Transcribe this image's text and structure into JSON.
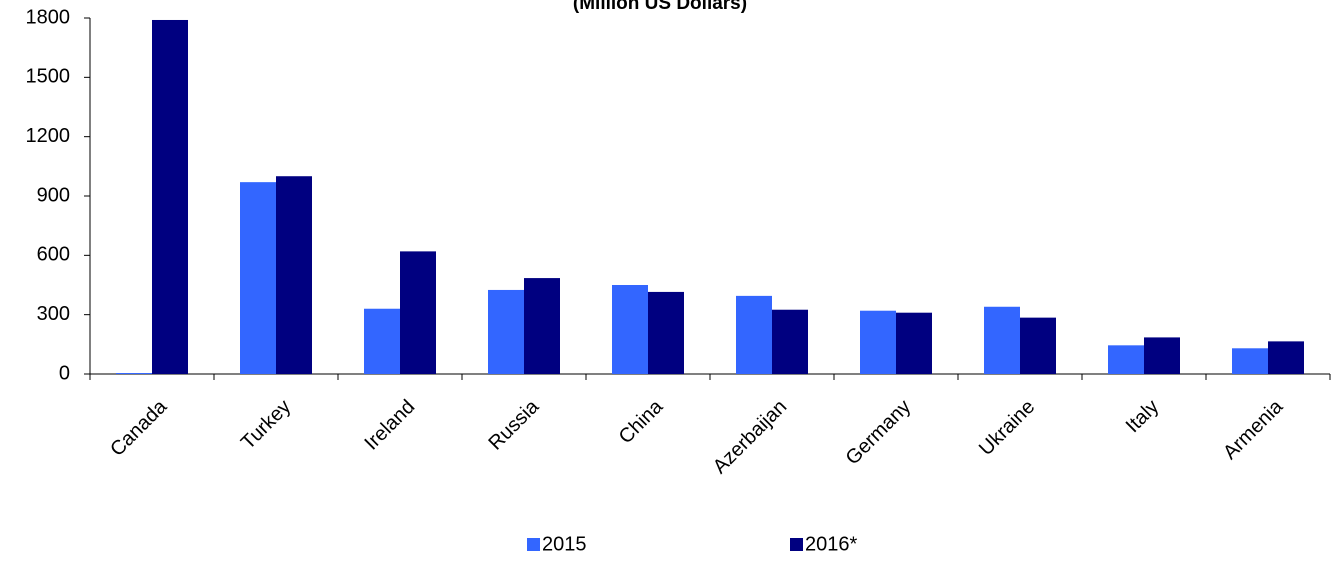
{
  "chart_data": {
    "type": "bar",
    "title": "(Million US Dollars)",
    "categories": [
      "Canada",
      "Turkey",
      "Ireland",
      "Russia",
      "China",
      "Azerbaijan",
      "Germany",
      "Ukraine",
      "Italy",
      "Armenia"
    ],
    "series": [
      {
        "name": "2015",
        "color": "#3366ff",
        "values": [
          5,
          970,
          330,
          425,
          450,
          395,
          320,
          340,
          145,
          130
        ]
      },
      {
        "name": "2016*",
        "color": "#000080",
        "values": [
          1790,
          1000,
          620,
          485,
          415,
          325,
          310,
          285,
          185,
          165
        ]
      }
    ],
    "ylim": [
      0,
      1800
    ],
    "yticks": [
      0,
      300,
      600,
      900,
      1200,
      1500,
      1800
    ],
    "grid": false,
    "legend": "bottom"
  }
}
